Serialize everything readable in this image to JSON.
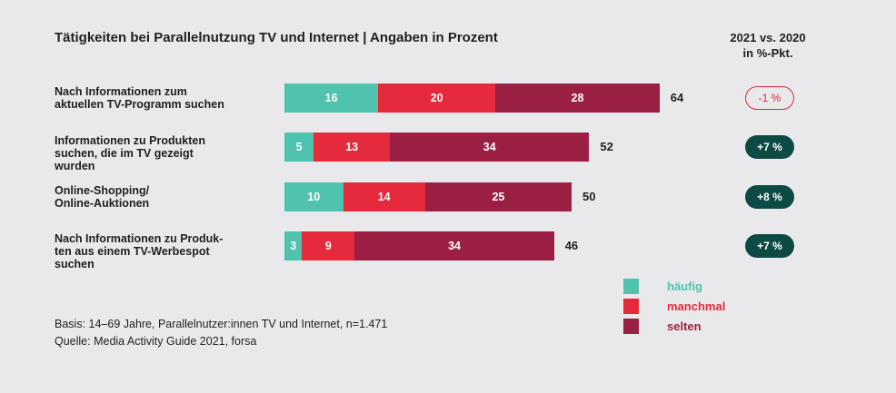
{
  "header": {
    "title": "Tätigkeiten bei Parallelnutzung TV und Internet | Angaben in Prozent",
    "comparison_line1": "2021 vs. 2020",
    "comparison_line2": "in %-Pkt."
  },
  "colors": {
    "haeufig": "#4fc3ae",
    "manchmal": "#e42a3b",
    "selten": "#9b1f43",
    "pill_positive": "#0e4a44",
    "pill_negative": "#e32636",
    "background": "#e9e9eb"
  },
  "chart_data": {
    "type": "bar",
    "orientation": "horizontal",
    "stacked": true,
    "categories": [
      "Nach Informationen zum aktuellen TV-Programm suchen",
      "Informationen zu Produkten suchen, die im TV gezeigt wurden",
      "Online-Shopping/ Online-Auktionen",
      "Nach Informationen zu Produkten aus einem TV-Werbespot suchen"
    ],
    "category_lines": [
      [
        "Nach Informationen zum",
        "aktuellen TV-Programm suchen"
      ],
      [
        "Informationen zu Produkten",
        "suchen, die im TV gezeigt",
        "wurden"
      ],
      [
        "Online-Shopping/",
        "Online-Auktionen"
      ],
      [
        "Nach Informationen zu Produk-",
        "ten aus einem TV-Werbespot",
        "suchen"
      ]
    ],
    "series": [
      {
        "name": "häufig",
        "values": [
          16,
          5,
          10,
          3
        ]
      },
      {
        "name": "manchmal",
        "values": [
          20,
          13,
          14,
          9
        ]
      },
      {
        "name": "selten",
        "values": [
          28,
          34,
          25,
          34
        ]
      }
    ],
    "totals": [
      64,
      52,
      50,
      46
    ],
    "changes": [
      "-1 %",
      "+7 %",
      "+8 %",
      "+7 %"
    ],
    "change_values": [
      -1,
      7,
      8,
      7
    ],
    "legend_position": "bottom-right",
    "grid": false
  },
  "legend": {
    "items": [
      "häufig",
      "manchmal",
      "selten"
    ]
  },
  "footnotes": {
    "basis": "Basis: 14–69 Jahre, Parallelnutzer:innen TV und Internet, n=1.471",
    "source": "Quelle: Media Activity Guide 2021, forsa"
  }
}
